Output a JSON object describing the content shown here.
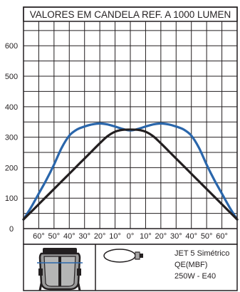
{
  "chart_data": {
    "type": "line",
    "title": "VALORES EM CANDELA REF. A 1000 LUMEN",
    "x": [
      -70,
      -65,
      -60,
      -55,
      -50,
      -45,
      -40,
      -35,
      -30,
      -25,
      -20,
      -15,
      -10,
      -5,
      0,
      5,
      10,
      15,
      20,
      25,
      30,
      35,
      40,
      45,
      50,
      55,
      60,
      65,
      70
    ],
    "x_tick_labels": [
      "60°",
      "50°",
      "40°",
      "30°",
      "20°",
      "10°",
      "0°",
      "10°",
      "20°",
      "30°",
      "40°",
      "50°",
      "60°"
    ],
    "x_tick_values": [
      -60,
      -50,
      -40,
      -30,
      -20,
      -10,
      0,
      10,
      20,
      30,
      40,
      50,
      60
    ],
    "xlim": [
      -70,
      70
    ],
    "ylim": [
      0,
      680
    ],
    "y_ticks": [
      0,
      100,
      200,
      300,
      400,
      500,
      600
    ],
    "grid": true,
    "series": [
      {
        "color": "#2a66ab",
        "values": [
          30,
          70,
          115,
          160,
          210,
          265,
          305,
          325,
          335,
          342,
          345,
          342,
          335,
          327,
          322,
          327,
          335,
          342,
          345,
          342,
          335,
          325,
          305,
          265,
          210,
          160,
          115,
          70,
          30
        ]
      },
      {
        "color": "#231f20",
        "values": [
          30,
          55,
          80,
          105,
          130,
          155,
          180,
          205,
          230,
          255,
          280,
          303,
          318,
          324,
          325,
          324,
          318,
          303,
          280,
          255,
          230,
          205,
          180,
          155,
          130,
          105,
          80,
          55,
          30
        ]
      }
    ]
  },
  "info": {
    "line1": "JET 5 Simétrico",
    "line2": "QE(MBF)",
    "line3": "250W - E40"
  }
}
